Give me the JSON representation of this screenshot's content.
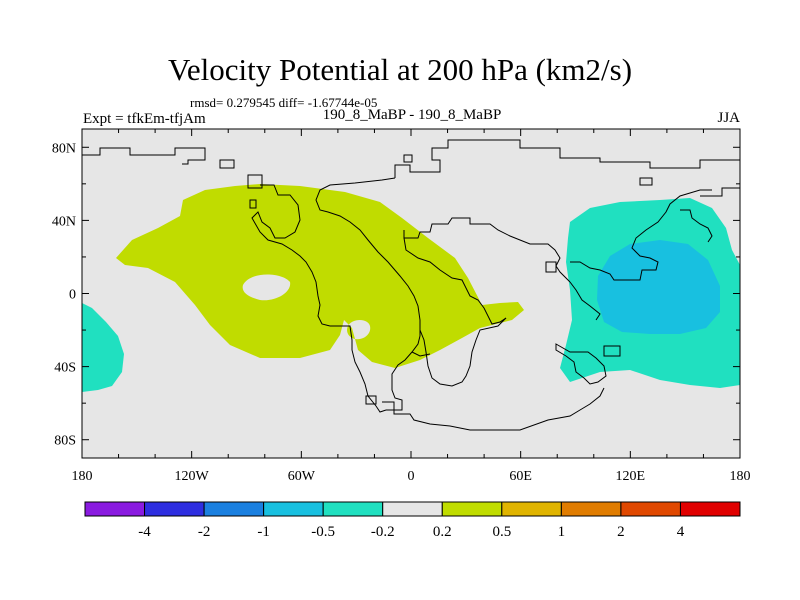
{
  "header": {
    "title": "Velocity Potential at 200 hPa (km2/s)",
    "stats": "rmsd= 0.279545 diff= -1.67744e-05",
    "experiment": "Expt = tfkEm-tfjAm",
    "center_label": "190_8_MaBP - 190_8_MaBP",
    "season": "JJA"
  },
  "map": {
    "background_color": "#e6e6e6",
    "coastline_color": "#000000",
    "lon_ticks": [
      "180",
      "120W",
      "60W",
      "0",
      "60E",
      "120E",
      "180"
    ],
    "lat_ticks": [
      "80N",
      "40N",
      "0",
      "40S",
      "80S"
    ],
    "regions": [
      {
        "name": "positive-anomaly-africa-atlantic",
        "level": "0.2 to 0.5",
        "color": "#c0dc00"
      },
      {
        "name": "negative-anomaly-pacific-indian",
        "level": "-0.5 to -0.2",
        "color": "#20e0c0"
      },
      {
        "name": "negative-anomaly-pacific-core",
        "level": "-1 to -0.5",
        "color": "#18c0e0"
      },
      {
        "name": "negative-anomaly-south-atlantic",
        "level": "-0.5 to -0.2",
        "color": "#20e0c0"
      }
    ]
  },
  "colorbar": {
    "colors": [
      "#8a1be0",
      "#2e2ee0",
      "#1b80e0",
      "#18c0e0",
      "#20e0c0",
      "#e6e6e6",
      "#c0dc00",
      "#e0b400",
      "#e07c00",
      "#e04800",
      "#e00000"
    ],
    "labels": [
      "-4",
      "-2",
      "-1",
      "-0.5",
      "-0.2",
      "0.2",
      "0.5",
      "1",
      "2",
      "4"
    ]
  }
}
